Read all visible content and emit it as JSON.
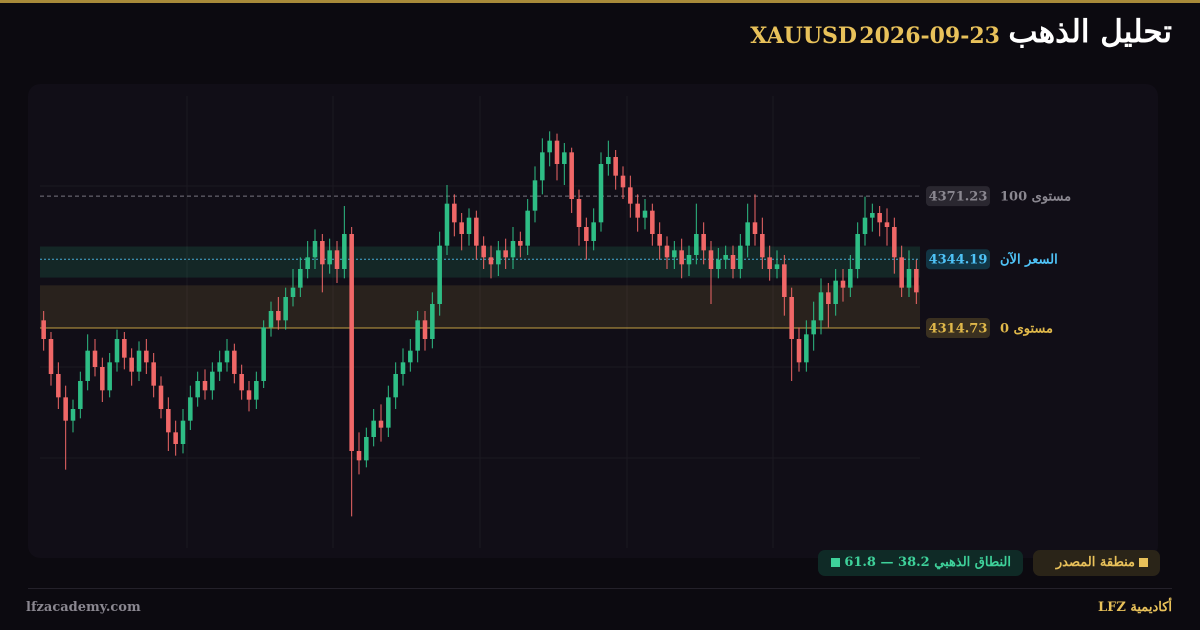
{
  "header": {
    "title": "تحليل الذهب",
    "date": "2026-09-23",
    "symbol": "XAUUSD"
  },
  "chart_data": {
    "type": "candlestick",
    "open": [
      4318,
      4310,
      4295,
      4285,
      4275,
      4280,
      4292,
      4305,
      4298,
      4288,
      4300,
      4310,
      4302,
      4296,
      4305,
      4300,
      4290,
      4280,
      4270,
      4265,
      4275,
      4285,
      4292,
      4288,
      4296,
      4300,
      4305,
      4295,
      4288,
      4284,
      4292,
      4315,
      4322,
      4318,
      4328,
      4332,
      4340,
      4345,
      4352,
      4342,
      4348,
      4340,
      4355,
      4262,
      4258,
      4268,
      4275,
      4272,
      4285,
      4295,
      4300,
      4305,
      4318,
      4310,
      4325,
      4350,
      4368,
      4360,
      4355,
      4362,
      4350,
      4345,
      4342,
      4348,
      4345,
      4352,
      4350,
      4365,
      4378,
      4390,
      4395,
      4385,
      4390,
      4370,
      4358,
      4352,
      4360,
      4385,
      4388,
      4380,
      4375,
      4368,
      4362,
      4365,
      4355,
      4350,
      4345,
      4348,
      4342,
      4346,
      4355,
      4348,
      4340,
      4344,
      4346,
      4340,
      4350,
      4360,
      4355,
      4345,
      4340,
      4342,
      4328,
      4310,
      4300,
      4312,
      4318,
      4330,
      4325,
      4335,
      4332,
      4340,
      4355,
      4362,
      4364,
      4360,
      4358,
      4345,
      4332,
      4340
    ],
    "high": [
      4322,
      4313,
      4300,
      4290,
      4284,
      4296,
      4312,
      4310,
      4302,
      4304,
      4314,
      4313,
      4306,
      4309,
      4310,
      4304,
      4294,
      4285,
      4275,
      4280,
      4290,
      4296,
      4297,
      4300,
      4305,
      4310,
      4308,
      4299,
      4292,
      4296,
      4318,
      4326,
      4328,
      4332,
      4340,
      4345,
      4352,
      4357,
      4355,
      4353,
      4352,
      4367,
      4358,
      4270,
      4272,
      4280,
      4282,
      4290,
      4300,
      4306,
      4310,
      4322,
      4322,
      4330,
      4356,
      4376,
      4372,
      4364,
      4366,
      4365,
      4354,
      4350,
      4352,
      4353,
      4358,
      4356,
      4370,
      4384,
      4396,
      4399,
      4398,
      4394,
      4392,
      4374,
      4362,
      4366,
      4390,
      4395,
      4391,
      4384,
      4380,
      4372,
      4370,
      4368,
      4360,
      4354,
      4352,
      4353,
      4350,
      4368,
      4360,
      4352,
      4349,
      4350,
      4350,
      4355,
      4368,
      4372,
      4362,
      4350,
      4348,
      4346,
      4332,
      4315,
      4318,
      4326,
      4336,
      4334,
      4340,
      4340,
      4346,
      4360,
      4371,
      4368,
      4367,
      4366,
      4362,
      4350,
      4348,
      4344
    ],
    "low": [
      4305,
      4290,
      4280,
      4254,
      4270,
      4276,
      4288,
      4294,
      4283,
      4285,
      4296,
      4297,
      4290,
      4292,
      4295,
      4285,
      4276,
      4262,
      4260,
      4261,
      4271,
      4281,
      4284,
      4284,
      4292,
      4296,
      4291,
      4284,
      4279,
      4280,
      4289,
      4311,
      4314,
      4314,
      4324,
      4328,
      4336,
      4340,
      4330,
      4338,
      4334,
      4336,
      4234,
      4252,
      4255,
      4264,
      4266,
      4268,
      4280,
      4290,
      4296,
      4300,
      4305,
      4306,
      4320,
      4346,
      4354,
      4348,
      4350,
      4344,
      4340,
      4336,
      4337,
      4340,
      4340,
      4345,
      4346,
      4360,
      4372,
      4384,
      4378,
      4376,
      4364,
      4350,
      4344,
      4348,
      4356,
      4380,
      4374,
      4370,
      4362,
      4356,
      4357,
      4350,
      4344,
      4340,
      4340,
      4336,
      4337,
      4342,
      4342,
      4325,
      4336,
      4340,
      4336,
      4336,
      4345,
      4350,
      4340,
      4335,
      4336,
      4320,
      4292,
      4296,
      4296,
      4305,
      4312,
      4315,
      4320,
      4326,
      4328,
      4336,
      4350,
      4356,
      4354,
      4350,
      4338,
      4328,
      4328,
      4325
    ],
    "close": [
      4310,
      4295,
      4285,
      4275,
      4280,
      4292,
      4305,
      4298,
      4288,
      4300,
      4310,
      4302,
      4296,
      4305,
      4300,
      4290,
      4280,
      4270,
      4265,
      4275,
      4285,
      4292,
      4288,
      4296,
      4300,
      4305,
      4295,
      4288,
      4284,
      4292,
      4315,
      4322,
      4318,
      4328,
      4332,
      4340,
      4345,
      4352,
      4342,
      4348,
      4340,
      4355,
      4262,
      4258,
      4268,
      4275,
      4272,
      4285,
      4295,
      4300,
      4305,
      4318,
      4310,
      4325,
      4350,
      4368,
      4360,
      4355,
      4362,
      4350,
      4345,
      4342,
      4348,
      4345,
      4352,
      4350,
      4365,
      4378,
      4390,
      4395,
      4385,
      4390,
      4370,
      4358,
      4352,
      4360,
      4385,
      4388,
      4380,
      4375,
      4368,
      4362,
      4365,
      4355,
      4350,
      4345,
      4348,
      4342,
      4346,
      4355,
      4348,
      4340,
      4344,
      4346,
      4340,
      4350,
      4360,
      4355,
      4345,
      4340,
      4342,
      4328,
      4310,
      4300,
      4312,
      4318,
      4330,
      4325,
      4335,
      4332,
      4340,
      4355,
      4362,
      4364,
      4360,
      4358,
      4345,
      4332,
      4340,
      4330
    ],
    "up_color": "#2ebd85",
    "down_color": "#f06767",
    "ylim": [
      4220,
      4415
    ],
    "levels": [
      {
        "label": "مستوى 100",
        "value": 4371.23,
        "color": "#8a8790",
        "style": "dashed"
      },
      {
        "label": "مستوى 0",
        "value": 4314.73,
        "color": "#e0b84a",
        "style": "solid"
      }
    ],
    "current_price": {
      "label": "السعر الآن",
      "value": 4344.19,
      "color": "#4fc3f7"
    },
    "golden_zone": {
      "label": "النطاق الذهبي",
      "from": 38.2,
      "separator": "—",
      "to": 61.8,
      "color": "#2ebd85"
    },
    "source_zone": {
      "label": "منطقة المصدر",
      "low": 4314.73,
      "high": 4333,
      "color": "#e0b84a"
    }
  },
  "footer": {
    "site": "lfzacademy.com",
    "brand": "أكاديمية LFZ"
  }
}
